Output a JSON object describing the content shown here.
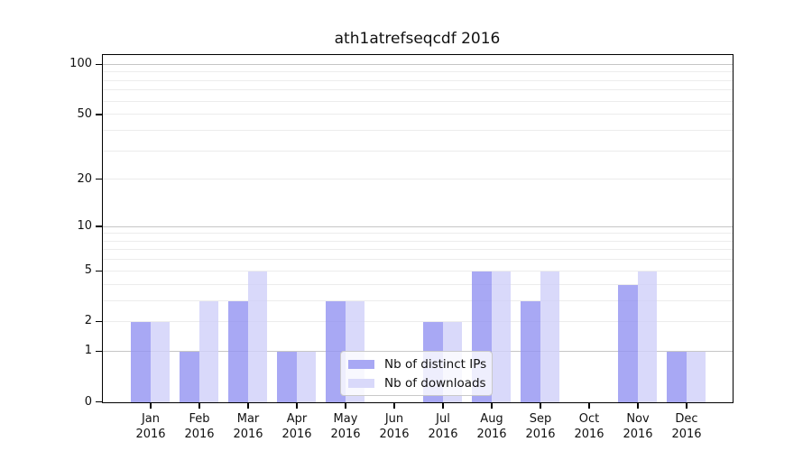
{
  "title": "ath1atrefseqcdf 2016",
  "chart_data": {
    "type": "bar",
    "title": "ath1atrefseqcdf 2016",
    "categories": [
      "Jan",
      "Feb",
      "Mar",
      "Apr",
      "May",
      "Jun",
      "Jul",
      "Aug",
      "Sep",
      "Oct",
      "Nov",
      "Dec"
    ],
    "category_year": "2016",
    "series": [
      {
        "name": "Nb of distinct IPs",
        "color": "#a8a8f4",
        "fill": "rgba(146,146,241,0.8)",
        "values": [
          2,
          1,
          3,
          1,
          3,
          0,
          2,
          5,
          3,
          0,
          4,
          1
        ]
      },
      {
        "name": "Nb of downloads",
        "color": "#d9d9fa",
        "fill": "rgba(208,208,249,0.8)",
        "values": [
          2,
          3,
          5,
          1,
          3,
          0,
          2,
          5,
          5,
          0,
          5,
          1
        ]
      }
    ],
    "xlabel": "",
    "ylabel": "",
    "y_scale": "log10(1+v)",
    "y_tick_labels": [
      0,
      1,
      2,
      5,
      10,
      20,
      50,
      100
    ],
    "y_major_gridlines": [
      1,
      10,
      100
    ],
    "y_minor_gridlines": [
      2,
      3,
      4,
      5,
      6,
      7,
      8,
      9,
      20,
      30,
      40,
      50,
      60,
      70,
      80,
      90
    ],
    "ylim": [
      0,
      113
    ],
    "grid": true,
    "legend_position": "lower center",
    "axis_color": "#000000",
    "major_grid_color": "#c6c6c6",
    "minor_grid_color": "#ececec"
  }
}
